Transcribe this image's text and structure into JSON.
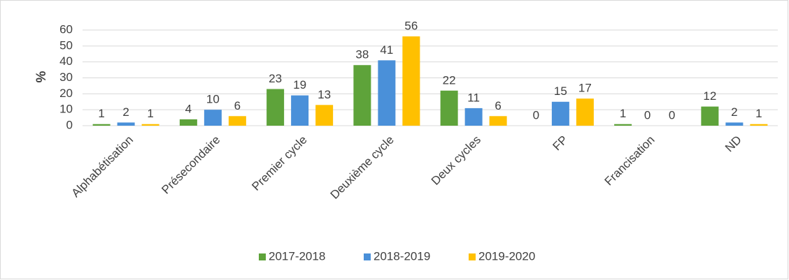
{
  "chart_data": {
    "type": "bar",
    "categories": [
      "Alphabétisation",
      "Présecondaire",
      "Premier cycle",
      "Deuxième cycle",
      "Deux cycles",
      "FP",
      "Francisation",
      "ND"
    ],
    "series": [
      {
        "name": "2017-2018",
        "color": "#5ea33a",
        "values": [
          1,
          4,
          23,
          38,
          22,
          0,
          1,
          12
        ]
      },
      {
        "name": "2018-2019",
        "color": "#4a90d9",
        "values": [
          2,
          10,
          19,
          41,
          11,
          15,
          0,
          2
        ]
      },
      {
        "name": "2019-2020",
        "color": "#ffc000",
        "values": [
          1,
          6,
          13,
          56,
          6,
          17,
          0,
          1
        ]
      }
    ],
    "ylabel": "%",
    "ylim": [
      0,
      60
    ],
    "yticks": [
      0,
      10,
      20,
      30,
      40,
      50,
      60
    ],
    "grid": true,
    "legend": "bottom"
  }
}
